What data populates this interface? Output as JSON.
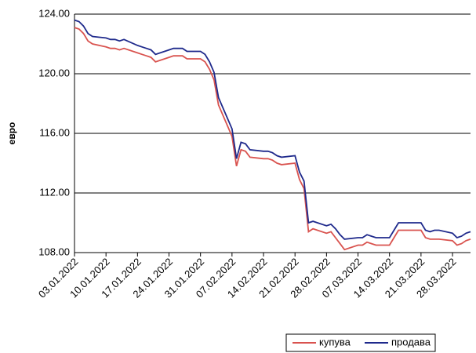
{
  "chart_data": {
    "type": "line",
    "y_label": "евро",
    "x": [
      "03.01.2022",
      "04.01.2022",
      "05.01.2022",
      "06.01.2022",
      "07.01.2022",
      "10.01.2022",
      "11.01.2022",
      "12.01.2022",
      "13.01.2022",
      "14.01.2022",
      "17.01.2022",
      "18.01.2022",
      "19.01.2022",
      "20.01.2022",
      "21.01.2022",
      "24.01.2022",
      "25.01.2022",
      "26.01.2022",
      "27.01.2022",
      "28.01.2022",
      "31.01.2022",
      "01.02.2022",
      "02.02.2022",
      "03.02.2022",
      "04.02.2022",
      "07.02.2022",
      "08.02.2022",
      "09.02.2022",
      "10.02.2022",
      "11.02.2022",
      "14.02.2022",
      "15.02.2022",
      "16.02.2022",
      "17.02.2022",
      "18.02.2022",
      "21.02.2022",
      "22.02.2022",
      "23.02.2022",
      "24.02.2022",
      "25.02.2022",
      "28.02.2022",
      "01.03.2022",
      "02.03.2022",
      "03.03.2022",
      "04.03.2022",
      "07.03.2022",
      "08.03.2022",
      "09.03.2022",
      "10.03.2022",
      "11.03.2022",
      "14.03.2022",
      "15.03.2022",
      "16.03.2022",
      "17.03.2022",
      "18.03.2022",
      "21.03.2022",
      "22.03.2022",
      "23.03.2022",
      "24.03.2022",
      "25.03.2022",
      "28.03.2022",
      "29.03.2022",
      "30.03.2022",
      "31.03.2022",
      "01.04.2022"
    ],
    "series": [
      {
        "name": "купува",
        "color": "#d9534f",
        "values": [
          123.1,
          123.0,
          122.7,
          122.2,
          122.0,
          121.8,
          121.7,
          121.7,
          121.6,
          121.7,
          121.4,
          121.3,
          121.2,
          121.1,
          120.8,
          121.1,
          121.2,
          121.2,
          121.2,
          121.0,
          121.0,
          120.8,
          120.3,
          119.6,
          117.9,
          115.8,
          113.8,
          114.9,
          114.8,
          114.4,
          114.3,
          114.3,
          114.2,
          114.0,
          113.9,
          114.0,
          112.9,
          112.3,
          109.4,
          109.6,
          109.3,
          109.4,
          109.0,
          108.6,
          108.2,
          108.5,
          108.5,
          108.7,
          108.6,
          108.5,
          108.5,
          109.0,
          109.5,
          109.5,
          109.5,
          109.5,
          109.0,
          108.9,
          108.9,
          108.9,
          108.8,
          108.5,
          108.6,
          108.8,
          108.9
        ]
      },
      {
        "name": "продава",
        "color": "#1f2a8c",
        "values": [
          123.6,
          123.5,
          123.2,
          122.7,
          122.5,
          122.4,
          122.3,
          122.3,
          122.2,
          122.3,
          121.9,
          121.8,
          121.7,
          121.6,
          121.3,
          121.6,
          121.7,
          121.7,
          121.7,
          121.5,
          121.5,
          121.3,
          120.8,
          120.1,
          118.4,
          116.3,
          114.3,
          115.4,
          115.3,
          114.9,
          114.8,
          114.8,
          114.7,
          114.5,
          114.4,
          114.5,
          113.4,
          112.8,
          110.0,
          110.1,
          109.8,
          109.9,
          109.6,
          109.2,
          108.9,
          109.0,
          109.0,
          109.2,
          109.1,
          109.0,
          109.0,
          109.5,
          110.0,
          110.0,
          110.0,
          110.0,
          109.5,
          109.4,
          109.5,
          109.5,
          109.3,
          109.0,
          109.1,
          109.3,
          109.4
        ]
      }
    ],
    "xlim": [
      "03.01.2022",
      "01.04.2022"
    ],
    "xticks": [
      "03.01.2022",
      "10.01.2022",
      "17.01.2022",
      "24.01.2022",
      "31.01.2022",
      "07.02.2022",
      "14.02.2022",
      "21.02.2022",
      "28.02.2022",
      "07.03.2022",
      "14.03.2022",
      "21.03.2022",
      "28.03.2022"
    ],
    "ylim": [
      108,
      124
    ],
    "yticks": [
      {
        "value": 108,
        "label": "108.00"
      },
      {
        "value": 112,
        "label": "112.00"
      },
      {
        "value": 116,
        "label": "116.00"
      },
      {
        "value": 120,
        "label": "120.00"
      },
      {
        "value": 124,
        "label": "124.00"
      }
    ],
    "grid": true,
    "legend": "bottom-right"
  }
}
